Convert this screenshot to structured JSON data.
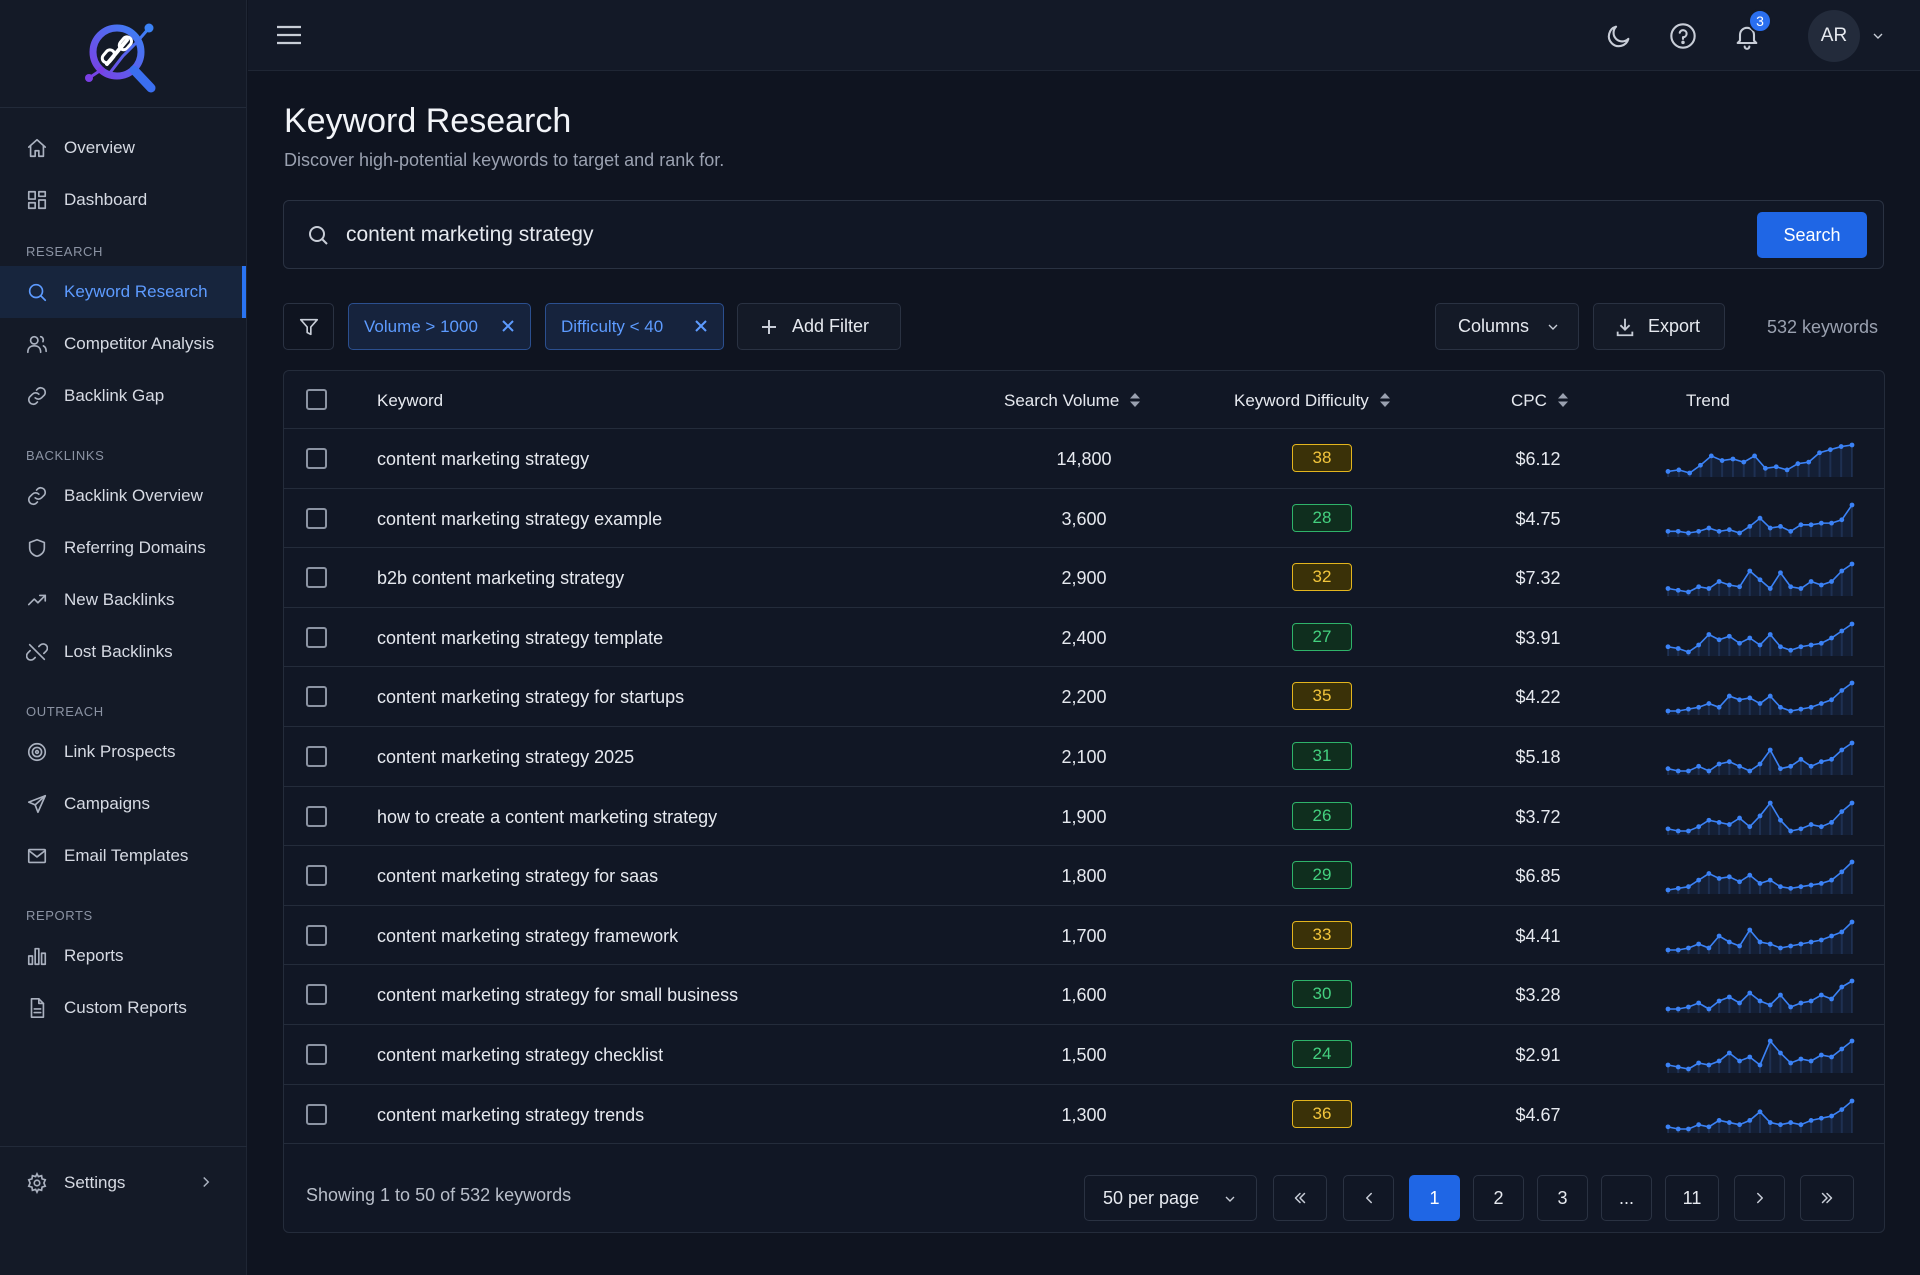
{
  "sidebar": {
    "top_items": [
      {
        "label": "Overview",
        "icon": "home-icon"
      },
      {
        "label": "Dashboard",
        "icon": "grid-icon"
      }
    ],
    "sections": [
      {
        "label": "RESEARCH",
        "items": [
          {
            "label": "Keyword Research",
            "icon": "search-icon",
            "active": true
          },
          {
            "label": "Competitor Analysis",
            "icon": "users-icon"
          },
          {
            "label": "Backlink Gap",
            "icon": "link-icon"
          }
        ]
      },
      {
        "label": "BACKLINKS",
        "items": [
          {
            "label": "Backlink Overview",
            "icon": "link-icon"
          },
          {
            "label": "Referring Domains",
            "icon": "shield-icon"
          },
          {
            "label": "New Backlinks",
            "icon": "trending-up-icon"
          },
          {
            "label": "Lost Backlinks",
            "icon": "broken-link-icon"
          }
        ]
      },
      {
        "label": "OUTREACH",
        "items": [
          {
            "label": "Link Prospects",
            "icon": "target-icon"
          },
          {
            "label": "Campaigns",
            "icon": "send-icon"
          },
          {
            "label": "Email Templates",
            "icon": "mail-icon"
          }
        ]
      },
      {
        "label": "REPORTS",
        "items": [
          {
            "label": "Reports",
            "icon": "bar-chart-icon"
          },
          {
            "label": "Custom Reports",
            "icon": "file-icon"
          }
        ]
      }
    ],
    "settings_label": "Settings"
  },
  "topbar": {
    "notification_count": "3",
    "avatar_initials": "AR"
  },
  "page": {
    "title": "Keyword Research",
    "subtitle": "Discover high-potential keywords to target and rank for."
  },
  "search": {
    "value": "content marketing strategy",
    "button_label": "Search"
  },
  "filters": {
    "chips": [
      "Volume > 1000",
      "Difficulty < 40"
    ],
    "add_filter_label": "Add Filter",
    "columns_label": "Columns",
    "export_label": "Export",
    "keyword_count": "532 keywords"
  },
  "table": {
    "headers": {
      "keyword": "Keyword",
      "volume": "Search Volume",
      "difficulty": "Keyword Difficulty",
      "cpc": "CPC",
      "trend": "Trend"
    },
    "rows": [
      {
        "keyword": "content marketing strategy",
        "volume": "14,800",
        "difficulty": "38",
        "cpc": "$6.12",
        "trend": [
          4,
          5,
          3,
          8,
          14,
          11,
          12,
          10,
          14,
          6,
          7,
          5,
          9,
          10,
          16,
          18,
          20,
          21
        ],
        "level": "y"
      },
      {
        "keyword": "content marketing strategy example",
        "volume": "3,600",
        "difficulty": "28",
        "cpc": "$4.75",
        "trend": [
          4,
          4,
          3,
          4,
          6,
          4,
          5,
          3,
          7,
          12,
          6,
          7,
          4,
          8,
          8,
          9,
          9,
          11,
          20
        ],
        "level": "g"
      },
      {
        "keyword": "b2b content marketing strategy",
        "volume": "2,900",
        "difficulty": "32",
        "cpc": "$7.32",
        "trend": [
          6,
          5,
          4,
          7,
          6,
          10,
          8,
          7,
          16,
          11,
          6,
          15,
          7,
          6,
          10,
          8,
          10,
          16,
          20
        ],
        "level": "y"
      },
      {
        "keyword": "content marketing strategy template",
        "volume": "2,400",
        "difficulty": "27",
        "cpc": "$3.91",
        "trend": [
          7,
          6,
          4,
          8,
          14,
          11,
          13,
          9,
          12,
          8,
          14,
          7,
          5,
          7,
          8,
          9,
          12,
          16,
          20
        ],
        "level": "g"
      },
      {
        "keyword": "content marketing strategy for startups",
        "volume": "2,200",
        "difficulty": "35",
        "cpc": "$4.22",
        "trend": [
          4,
          4,
          5,
          6,
          8,
          6,
          12,
          10,
          11,
          8,
          12,
          6,
          4,
          5,
          6,
          8,
          10,
          15,
          19
        ],
        "level": "y"
      },
      {
        "keyword": "content marketing strategy 2025",
        "volume": "2,100",
        "difficulty": "31",
        "cpc": "$5.18",
        "trend": [
          6,
          5,
          5,
          7,
          5,
          8,
          9,
          7,
          5,
          8,
          14,
          6,
          7,
          10,
          7,
          9,
          10,
          14,
          17
        ],
        "level": "g"
      },
      {
        "keyword": "how to create a content marketing strategy",
        "volume": "1,900",
        "difficulty": "26",
        "cpc": "$3.72",
        "trend": [
          6,
          5,
          5,
          7,
          10,
          9,
          8,
          11,
          7,
          12,
          18,
          10,
          5,
          6,
          8,
          7,
          9,
          14,
          18
        ],
        "level": "g"
      },
      {
        "keyword": "content marketing strategy for saas",
        "volume": "1,800",
        "difficulty": "29",
        "cpc": "$6.85",
        "trend": [
          4,
          5,
          6,
          10,
          14,
          11,
          12,
          9,
          13,
          8,
          10,
          6,
          5,
          6,
          7,
          8,
          10,
          15,
          21
        ],
        "level": "g"
      },
      {
        "keyword": "content marketing strategy framework",
        "volume": "1,700",
        "difficulty": "33",
        "cpc": "$4.41",
        "trend": [
          5,
          5,
          6,
          8,
          6,
          12,
          9,
          7,
          15,
          9,
          8,
          6,
          7,
          8,
          9,
          10,
          12,
          14,
          19
        ],
        "level": "y"
      },
      {
        "keyword": "content marketing strategy for small business",
        "volume": "1,600",
        "difficulty": "30",
        "cpc": "$3.28",
        "trend": [
          5,
          5,
          6,
          8,
          5,
          9,
          11,
          8,
          13,
          9,
          7,
          12,
          6,
          8,
          9,
          12,
          10,
          16,
          19
        ],
        "level": "g"
      },
      {
        "keyword": "content marketing strategy checklist",
        "volume": "1,500",
        "difficulty": "24",
        "cpc": "$2.91",
        "trend": [
          6,
          5,
          4,
          7,
          6,
          8,
          12,
          8,
          10,
          6,
          18,
          12,
          7,
          9,
          8,
          11,
          10,
          14,
          18
        ],
        "level": "g"
      },
      {
        "keyword": "content marketing strategy trends",
        "volume": "1,300",
        "difficulty": "36",
        "cpc": "$4.67",
        "trend": [
          5,
          4,
          4,
          6,
          5,
          8,
          7,
          6,
          8,
          12,
          7,
          6,
          7,
          6,
          8,
          9,
          10,
          13,
          17
        ],
        "level": "y"
      }
    ]
  },
  "pagination": {
    "showing": "Showing 1 to 50 of 532 keywords",
    "per_page": "50 per page",
    "pages": [
      "1",
      "2",
      "3",
      "...",
      "11"
    ],
    "current": "1"
  },
  "colors": {
    "accent": "#1f66e5",
    "trend_line": "#3b82f6",
    "kd_yellow": "#e3b51e",
    "kd_green": "#2fb36a"
  }
}
